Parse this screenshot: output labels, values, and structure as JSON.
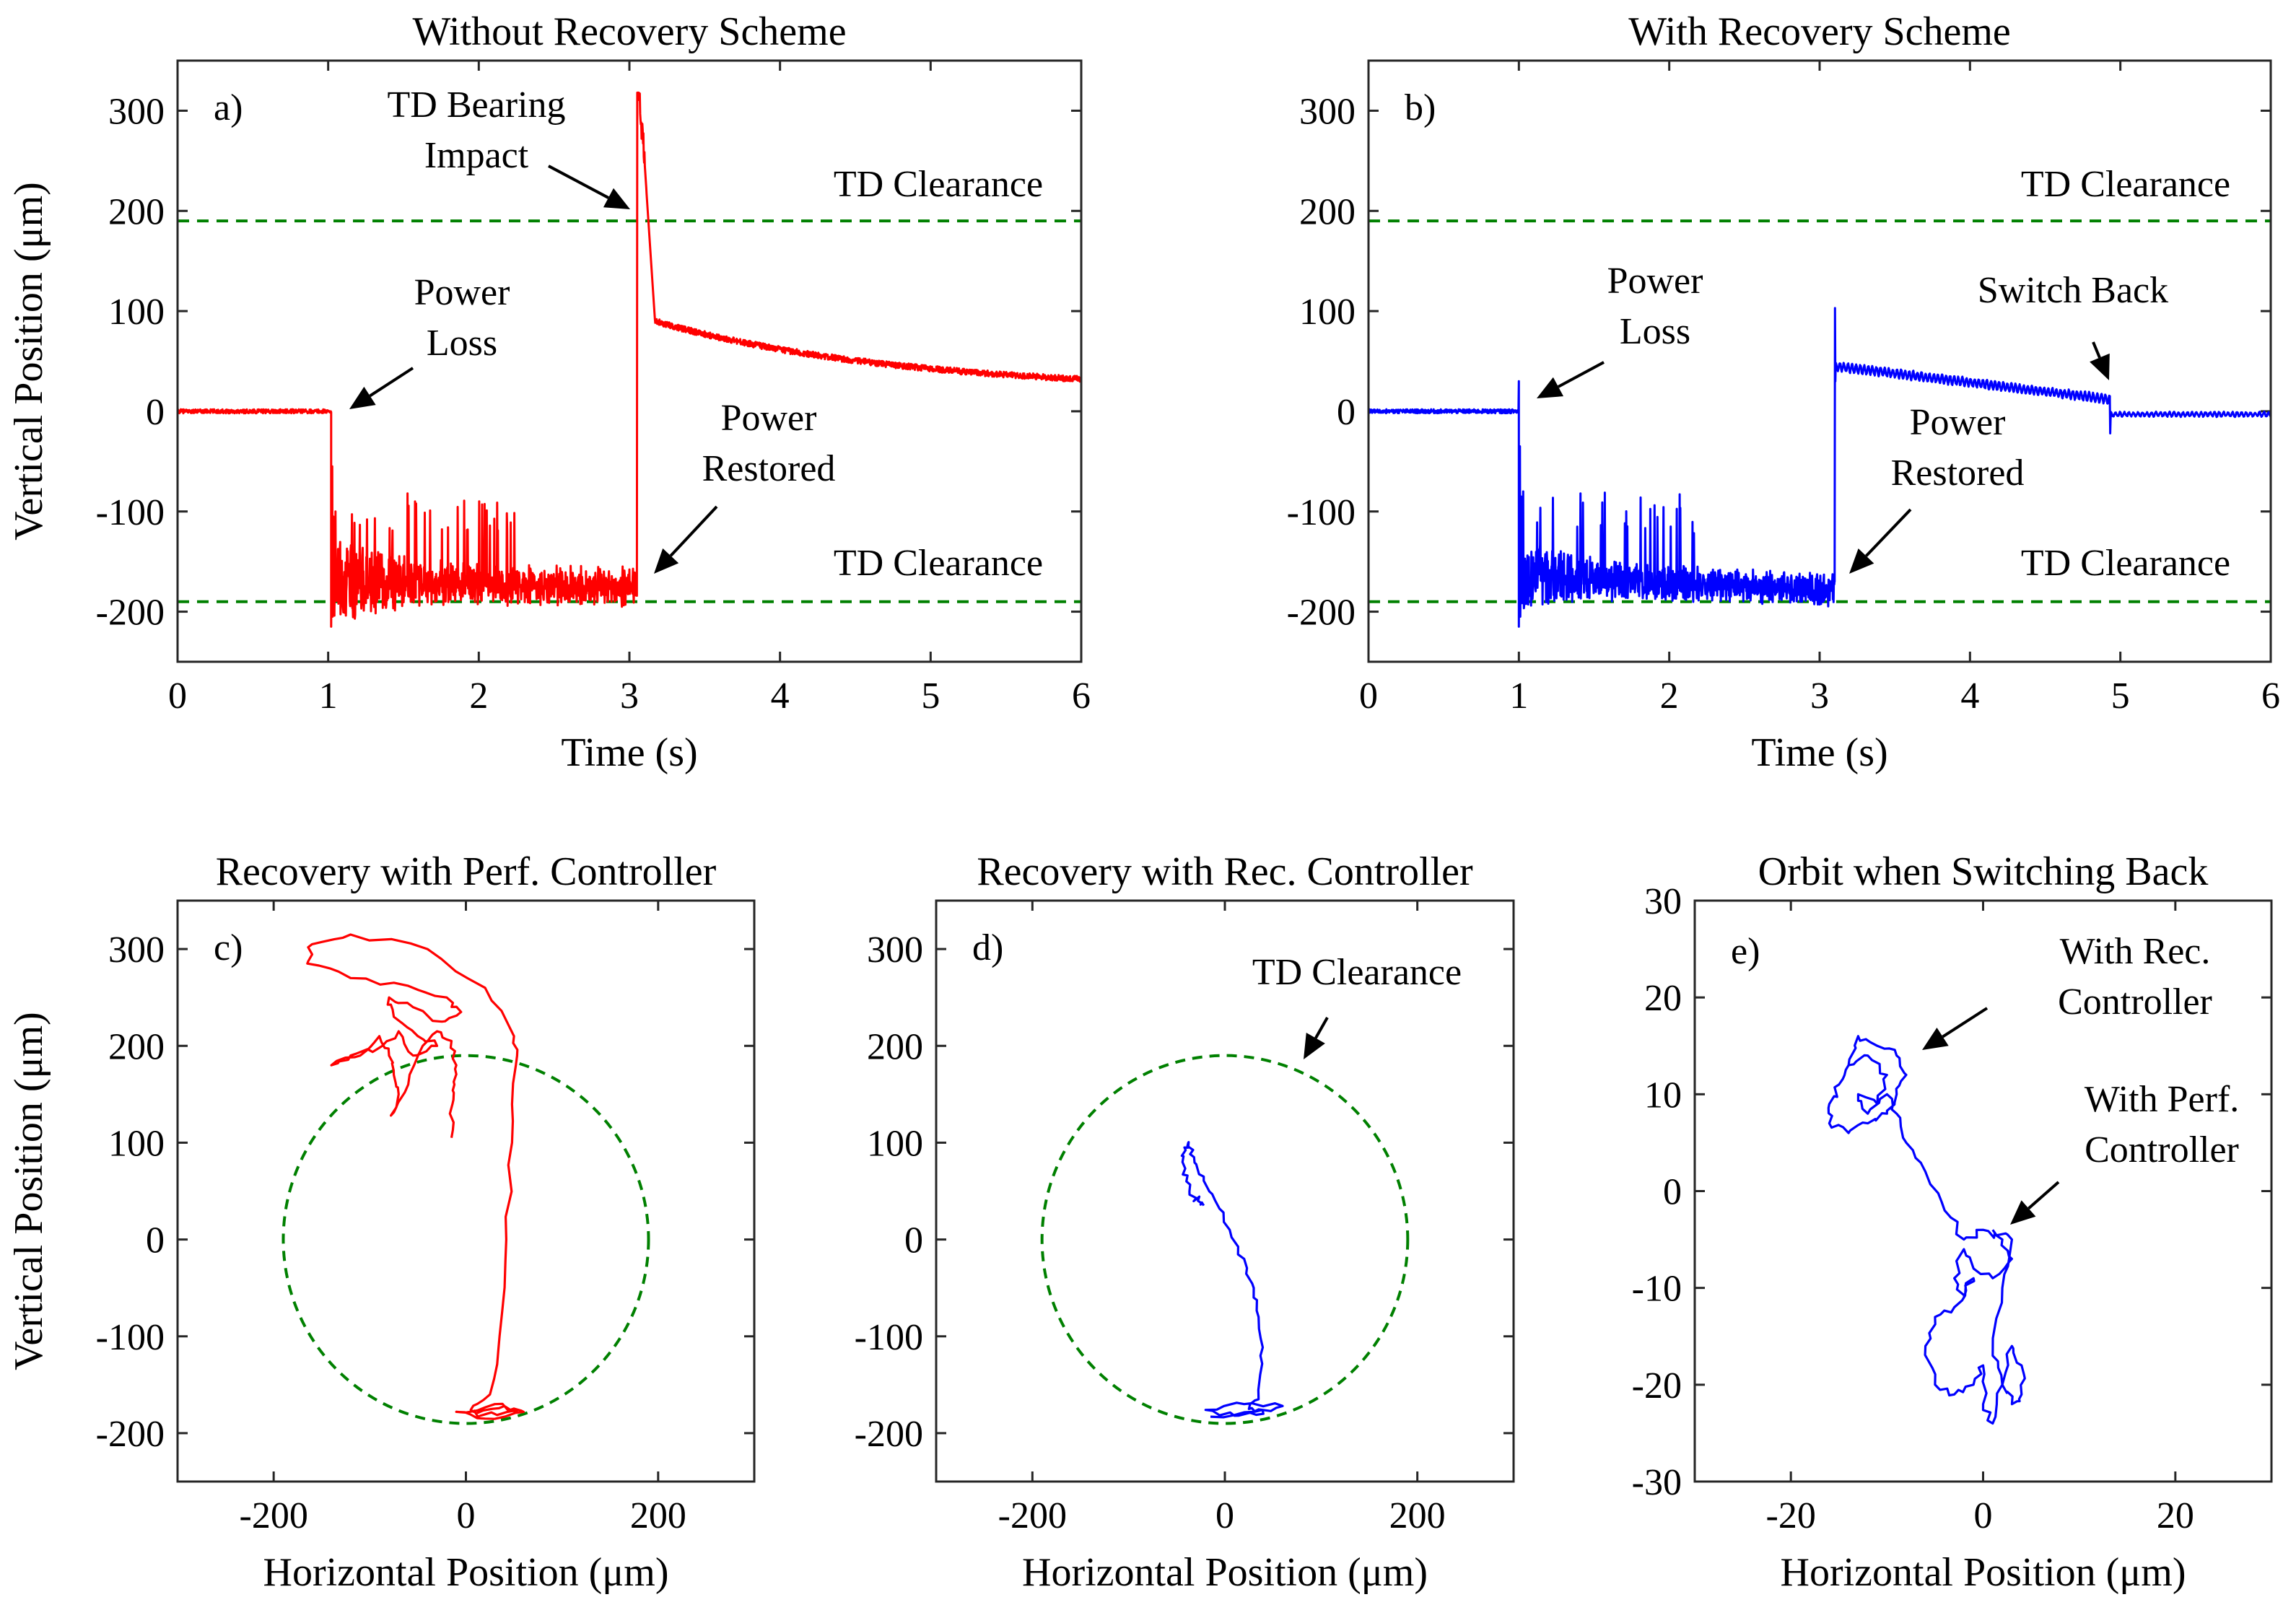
{
  "colors": {
    "no_recovery": "#ff0000",
    "recovery": "#0000ff",
    "clearance": "#008000",
    "axis": "#262626"
  },
  "chart_data": [
    {
      "id": "a",
      "type": "line",
      "panel_label": "a)",
      "title": "Without Recovery Scheme",
      "xlabel": "Time (s)",
      "ylabel": "Vertical Position (μm)",
      "xlim": [
        0,
        6
      ],
      "ylim": [
        -250,
        350
      ],
      "xticks": [
        "0",
        "1",
        "2",
        "3",
        "4",
        "5",
        "6"
      ],
      "yticks": [
        "300",
        "200",
        "100",
        "0",
        "-100",
        "-200"
      ],
      "clearance_lines": [
        190,
        -190
      ],
      "series": [
        {
          "name": "Vertical position",
          "color": "#ff0000",
          "segments": [
            {
              "t": [
                0,
                1.02
              ],
              "behavior": "steady",
              "level": 0,
              "noise": 2
            },
            {
              "t": [
                1.02,
                3.05
              ],
              "behavior": "contact",
              "level_start": -170,
              "level_end": -175,
              "noise": 12,
              "spike_min": -215,
              "spike_max": -55
            },
            {
              "t": [
                3.05,
                6.0
              ],
              "behavior": "impact_decay",
              "peak": 318,
              "after_impact": 90,
              "level_end": 20,
              "noise": 3
            }
          ]
        }
      ],
      "annotations": [
        {
          "text": [
            "TD Bearing",
            "Impact"
          ]
        },
        {
          "text": [
            "TD Clearance"
          ]
        },
        {
          "text": [
            "Power",
            "Loss"
          ]
        },
        {
          "text": [
            "Power",
            "Restored"
          ]
        },
        {
          "text": [
            "TD Clearance"
          ]
        }
      ]
    },
    {
      "id": "b",
      "type": "line",
      "panel_label": "b)",
      "title": "With Recovery Scheme",
      "xlabel": "Time (s)",
      "ylabel": "",
      "xlim": [
        0,
        6
      ],
      "ylim": [
        -250,
        350
      ],
      "xticks": [
        "0",
        "1",
        "2",
        "3",
        "4",
        "5",
        "6"
      ],
      "yticks": [
        "300",
        "200",
        "100",
        "0",
        "-100",
        "-200"
      ],
      "clearance_lines": [
        190,
        -190
      ],
      "series": [
        {
          "name": "Vertical position",
          "color": "#0000ff",
          "segments": [
            {
              "t": [
                0,
                1.0
              ],
              "behavior": "steady",
              "level": 0,
              "noise": 2,
              "spike_end": 30
            },
            {
              "t": [
                1.0,
                3.1
              ],
              "behavior": "contact",
              "level_start": -165,
              "level_end": -178,
              "noise": 10,
              "spike_min": -215,
              "spike_max": -35
            },
            {
              "t": [
                3.1,
                4.93
              ],
              "behavior": "recovery",
              "peak": 103,
              "level_start": 45,
              "level_end": 12,
              "noise": 4
            },
            {
              "t": [
                4.93,
                6.0
              ],
              "behavior": "switch_back",
              "dip": -22,
              "level": -3,
              "noise": 2
            }
          ]
        }
      ],
      "annotations": [
        {
          "text": [
            "TD Clearance"
          ]
        },
        {
          "text": [
            "Power",
            "Loss"
          ]
        },
        {
          "text": [
            "Switch Back"
          ]
        },
        {
          "text": [
            "Power",
            "Restored"
          ]
        },
        {
          "text": [
            "TD Clearance"
          ]
        }
      ]
    },
    {
      "id": "c",
      "type": "line",
      "panel_label": "c)",
      "title": "Recovery with Perf. Controller",
      "xlabel": "Horizontal Position (μm)",
      "ylabel": "Vertical Position (μm)",
      "xlim": [
        -300,
        300
      ],
      "ylim": [
        -250,
        350
      ],
      "xticks": [
        "-200",
        "0",
        "200"
      ],
      "yticks": [
        "300",
        "200",
        "100",
        "0",
        "-100",
        "-200"
      ],
      "clearance_radius": 190,
      "series": [
        {
          "name": "Orbit",
          "color": "#ff0000",
          "points": [
            [
              10,
              -180
            ],
            [
              40,
              -172
            ],
            [
              60,
              -178
            ],
            [
              20,
              -185
            ],
            [
              -10,
              -178
            ],
            [
              30,
              -170
            ],
            [
              55,
              -176
            ],
            [
              15,
              -182
            ],
            [
              5,
              -176
            ],
            [
              25,
              -160
            ],
            [
              35,
              -100
            ],
            [
              42,
              0
            ],
            [
              48,
              100
            ],
            [
              52,
              180
            ],
            [
              50,
              210
            ],
            [
              20,
              260
            ],
            [
              -40,
              300
            ],
            [
              -120,
              315
            ],
            [
              -160,
              305
            ],
            [
              -165,
              285
            ],
            [
              -120,
              270
            ],
            [
              -60,
              262
            ],
            [
              -20,
              250
            ],
            [
              -5,
              235
            ],
            [
              -25,
              225
            ],
            [
              -55,
              240
            ],
            [
              -80,
              250
            ],
            [
              -75,
              230
            ],
            [
              -50,
              210
            ],
            [
              -30,
              200
            ],
            [
              -55,
              190
            ],
            [
              -70,
              215
            ],
            [
              -90,
              198
            ],
            [
              -120,
              190
            ],
            [
              -140,
              180
            ],
            [
              -110,
              190
            ],
            [
              -90,
              210
            ],
            [
              -80,
              190
            ],
            [
              -75,
              170
            ],
            [
              -70,
              150
            ],
            [
              -78,
              128
            ],
            [
              -60,
              160
            ],
            [
              -45,
              200
            ],
            [
              -30,
              215
            ],
            [
              -15,
              205
            ],
            [
              -10,
              180
            ],
            [
              -12,
              160
            ],
            [
              -14,
              140
            ],
            [
              -15,
              105
            ]
          ]
        }
      ],
      "annotations": []
    },
    {
      "id": "d",
      "type": "line",
      "panel_label": "d)",
      "title": "Recovery with Rec. Controller",
      "xlabel": "Horizontal Position (μm)",
      "ylabel": "",
      "xlim": [
        -300,
        300
      ],
      "ylim": [
        -250,
        350
      ],
      "xticks": [
        "-200",
        "0",
        "200"
      ],
      "yticks": [
        "300",
        "200",
        "100",
        "0",
        "-100",
        "-200"
      ],
      "clearance_radius": 190,
      "series": [
        {
          "name": "Orbit",
          "color": "#0000ff",
          "points": [
            [
              -15,
              -183
            ],
            [
              30,
              -178
            ],
            [
              60,
              -172
            ],
            [
              20,
              -170
            ],
            [
              -20,
              -176
            ],
            [
              10,
              -182
            ],
            [
              40,
              -180
            ],
            [
              25,
              -175
            ],
            [
              35,
              -165
            ],
            [
              37,
              -120
            ],
            [
              35,
              -80
            ],
            [
              30,
              -50
            ],
            [
              20,
              -20
            ],
            [
              5,
              10
            ],
            [
              -10,
              40
            ],
            [
              -22,
              65
            ],
            [
              -32,
              85
            ],
            [
              -38,
              100
            ],
            [
              -42,
              95
            ],
            [
              -44,
              80
            ],
            [
              -40,
              60
            ],
            [
              -34,
              45
            ],
            [
              -28,
              40
            ],
            [
              -22,
              35
            ]
          ]
        }
      ],
      "annotations": [
        {
          "text": [
            "TD Clearance"
          ]
        }
      ]
    },
    {
      "id": "e",
      "type": "line",
      "panel_label": "e)",
      "title": "Orbit when Switching Back",
      "xlabel": "Horizontal Position (μm)",
      "ylabel": "",
      "xlim": [
        -30,
        30
      ],
      "ylim": [
        -30,
        30
      ],
      "xticks": [
        "-20",
        "0",
        "20"
      ],
      "yticks": [
        "30",
        "20",
        "10",
        "0",
        "-10",
        "-20",
        "-30"
      ],
      "series": [
        {
          "name": "Orbit",
          "color": "#0000ff",
          "points": [
            [
              -14,
              13
            ],
            [
              -13,
              16
            ],
            [
              -11,
              15
            ],
            [
              -9,
              14
            ],
            [
              -8,
              12
            ],
            [
              -9,
              10
            ],
            [
              -10,
              8
            ],
            [
              -12,
              7
            ],
            [
              -14,
              6
            ],
            [
              -16,
              7
            ],
            [
              -16,
              9
            ],
            [
              -15,
              11
            ],
            [
              -14,
              13
            ],
            [
              -12,
              14
            ],
            [
              -10,
              12
            ],
            [
              -11,
              9
            ],
            [
              -13,
              10
            ],
            [
              -12,
              8
            ],
            [
              -10,
              10
            ],
            [
              -9,
              8
            ],
            [
              -8,
              5
            ],
            [
              -6,
              2
            ],
            [
              -4,
              -2
            ],
            [
              -2,
              -5
            ],
            [
              0,
              -4
            ],
            [
              2,
              -5
            ],
            [
              3,
              -7
            ],
            [
              1,
              -9
            ],
            [
              -1,
              -8
            ],
            [
              -2,
              -6
            ],
            [
              -3,
              -9
            ],
            [
              -2,
              -11
            ],
            [
              -1,
              -9
            ],
            [
              -3,
              -12
            ],
            [
              -5,
              -13
            ],
            [
              -6,
              -16
            ],
            [
              -5,
              -20
            ],
            [
              -3,
              -21
            ],
            [
              -1,
              -20
            ],
            [
              0,
              -18
            ],
            [
              0,
              -22
            ],
            [
              1,
              -24
            ],
            [
              2,
              -20
            ],
            [
              3,
              -16
            ],
            [
              4,
              -18
            ],
            [
              4,
              -21
            ],
            [
              3,
              -22
            ],
            [
              2,
              -20
            ],
            [
              1,
              -17
            ],
            [
              2,
              -10
            ],
            [
              3,
              -5
            ],
            [
              1,
              -4
            ]
          ]
        }
      ],
      "annotations": [
        {
          "text": [
            "With Rec.",
            "Controller"
          ]
        },
        {
          "text": [
            "With Perf.",
            "Controller"
          ]
        }
      ]
    }
  ]
}
